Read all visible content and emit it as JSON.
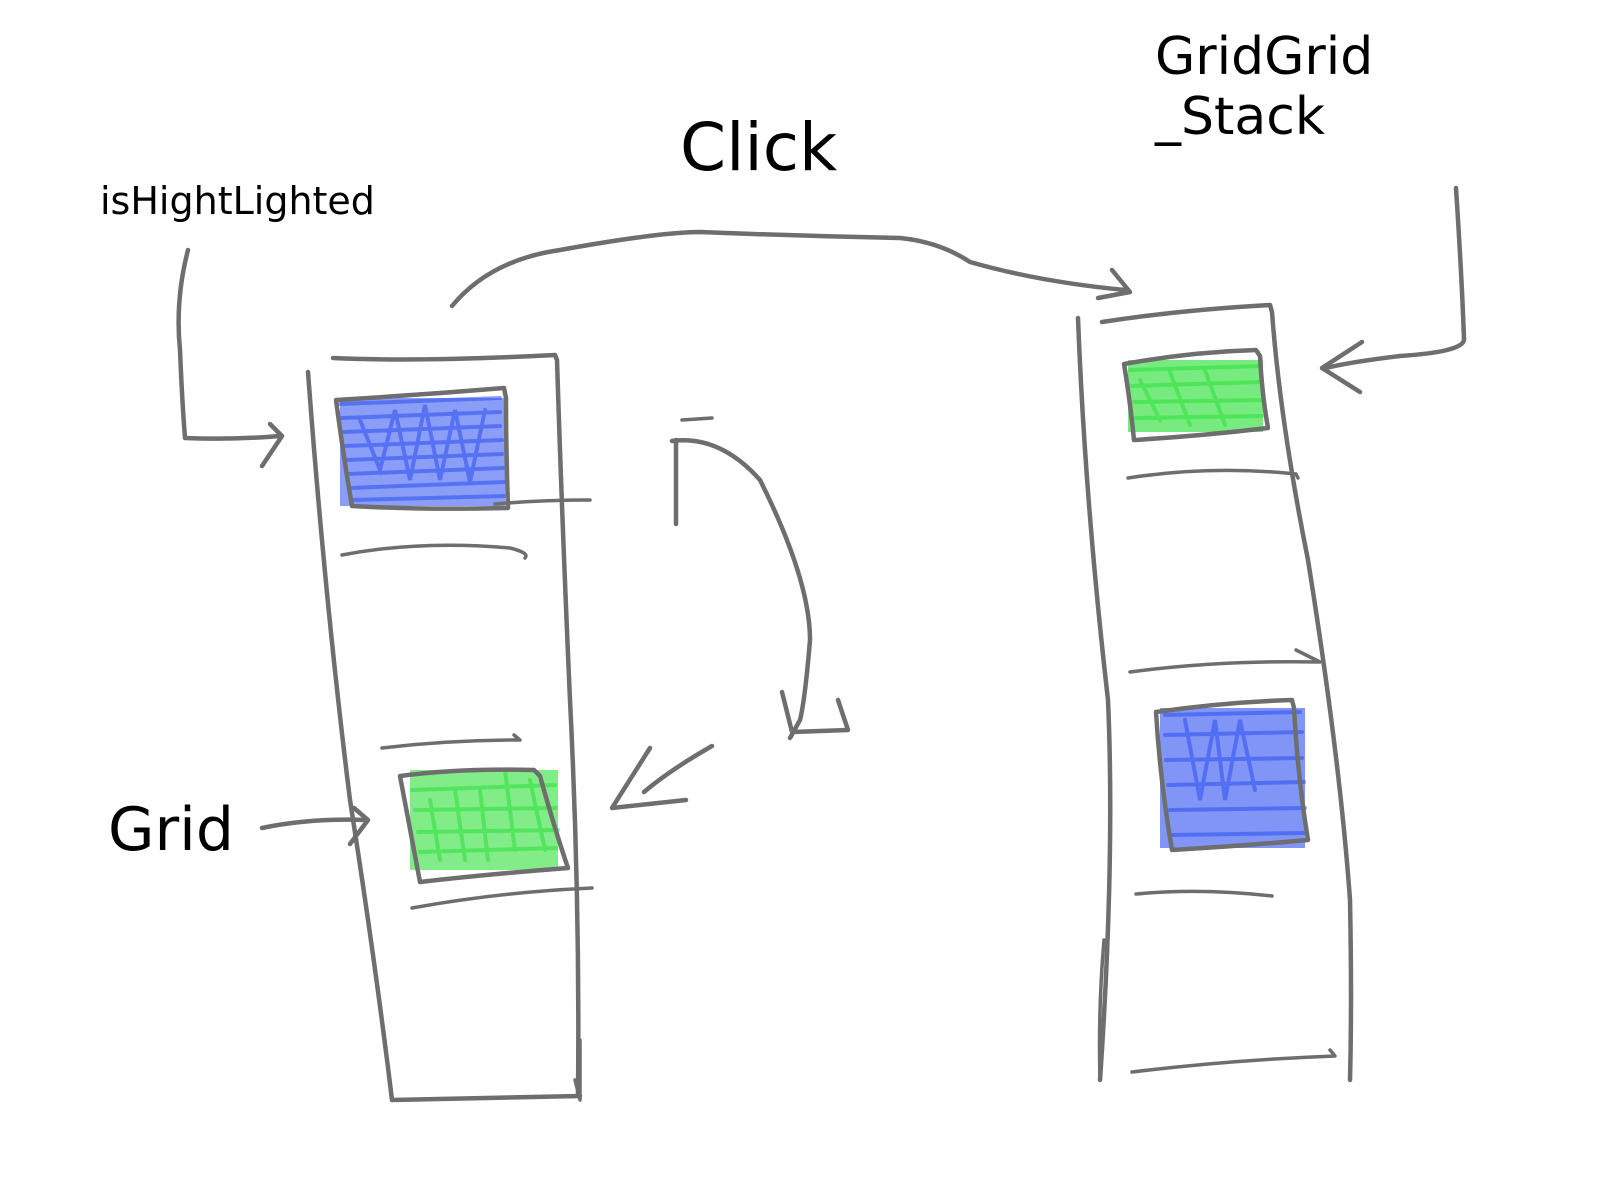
{
  "labels": {
    "click": "Click",
    "is_highlighted": "isHightLighted",
    "grid_grid_line1": "GridGrid",
    "grid_grid_line2": "_Stack",
    "grid": "Grid"
  },
  "colors": {
    "background": "#ffffff",
    "stroke": "#6e6e6e",
    "text": "#000000",
    "blue_item": "#2b4ff0",
    "green_item": "#2ee03a"
  },
  "states": {
    "before": {
      "top_item": "blue",
      "bottom_item": "green"
    },
    "after": {
      "top_item": "green",
      "bottom_item": "blue"
    }
  }
}
